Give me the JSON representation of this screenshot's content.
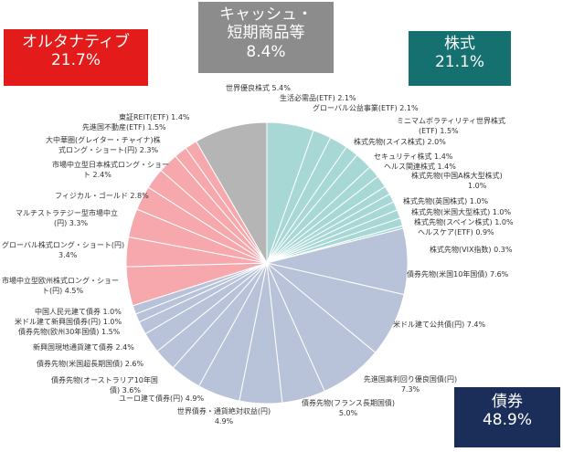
{
  "categories": {
    "alternatives": {
      "name": "オルタナティブ",
      "pct": "21.7%",
      "color": "#e41b1b"
    },
    "cash": {
      "name_line1": "キャッシュ・",
      "name_line2": "短期商品等",
      "pct": "8.4%",
      "color": "#8c8c8c"
    },
    "equity": {
      "name": "株式",
      "pct": "21.1%",
      "color": "#157070"
    },
    "bonds": {
      "name": "債券",
      "pct": "48.9%",
      "color": "#1b2e5a"
    }
  },
  "slice_colors": {
    "equity": "#a8d8d6",
    "bonds": "#b8c2d8",
    "alternatives": "#f7a8ad",
    "cash": "#b5b5b5"
  },
  "labels": {
    "eq1": "世界優良株式 5.4%",
    "eq2": "生活必需品(ETF) 2.1%",
    "eq3": "グローバル公益事業(ETF) 2.1%",
    "eq4a": "ミニマムボラティリティ世界株式",
    "eq4b": "(ETF) 1.5%",
    "eq5": "株式先物(スイス株式) 2.0%",
    "eq6": "セキュリティ株式 1.4%",
    "eq7": "ヘルス関連株式 1.4%",
    "eq8a": "株式先物(中国A株大型株式)",
    "eq8b": "1.0%",
    "eq9": "株式先物(英国株式) 1.0%",
    "eq10": "株式先物(米国大型株式) 1.0%",
    "eq11": "株式先物(スペイン株式) 1.0%",
    "eq12": "ヘルスケア(ETF) 0.9%",
    "eq13": "株式先物(VIX指数) 0.3%",
    "bd1": "債券先物(米国10年国債) 7.6%",
    "bd2": "米ドル建て公共債(円) 7.4%",
    "bd3a": "先進国高利回り優良国債(円)",
    "bd3b": "7.3%",
    "bd4a": "債券先物(フランス長期国債)",
    "bd4b": "5.0%",
    "bd5a": "世界債券・通貨絶対収益(円)",
    "bd5b": "4.9%",
    "bd6": "ユーロ建て債券(円) 4.9%",
    "bd7a": "債券先物(オーストラリア10年国",
    "bd7b": "債) 3.6%",
    "bd8": "債券先物(米国超長期国債) 2.6%",
    "bd9": "新興国現地通貨建て債券 2.4%",
    "bd10": "債券先物(欧州30年国債) 1.5%",
    "bd11": "米ドル建て新興国債券(円) 1.0%",
    "bd12": "中国人民元建て債券 1.0%",
    "al1a": "市場中立型欧州株式ロング・ショー",
    "al1b": "ト(円) 4.5%",
    "al2a": "グローバル株式ロング・ショート(円)",
    "al2b": "3.4%",
    "al3a": "マルチストラテジー型市場中立",
    "al3b": "(円) 3.3%",
    "al4": "フィジカル・ゴールド 2.8%",
    "al5a": "市場中立型日本株式ロング・ショー",
    "al5b": "ト 2.4%",
    "al6a": "大中華圏(グレイター・チャイナ)株",
    "al6b": "式ロング・ショート(円) 2.3%",
    "al7": "先進国不動産(ETF) 1.5%",
    "al8": "東証REIT(ETF) 1.4%"
  },
  "chart_data": {
    "type": "pie",
    "start": "12 o'clock, clockwise",
    "groups": [
      {
        "name": "株式",
        "total": 21.1,
        "slices": [
          {
            "label": "世界優良株式",
            "value": 5.4
          },
          {
            "label": "生活必需品(ETF)",
            "value": 2.1
          },
          {
            "label": "グローバル公益事業(ETF)",
            "value": 2.1
          },
          {
            "label": "ミニマムボラティリティ世界株式(ETF)",
            "value": 1.5
          },
          {
            "label": "株式先物(スイス株式)",
            "value": 2.0
          },
          {
            "label": "セキュリティ株式",
            "value": 1.4
          },
          {
            "label": "ヘルス関連株式",
            "value": 1.4
          },
          {
            "label": "株式先物(中国A株大型株式)",
            "value": 1.0
          },
          {
            "label": "株式先物(英国株式)",
            "value": 1.0
          },
          {
            "label": "株式先物(米国大型株式)",
            "value": 1.0
          },
          {
            "label": "株式先物(スペイン株式)",
            "value": 1.0
          },
          {
            "label": "ヘルスケア(ETF)",
            "value": 0.9
          },
          {
            "label": "株式先物(VIX指数)",
            "value": 0.3
          }
        ]
      },
      {
        "name": "債券",
        "total": 48.9,
        "slices": [
          {
            "label": "債券先物(米国10年国債)",
            "value": 7.6
          },
          {
            "label": "米ドル建て公共債(円)",
            "value": 7.4
          },
          {
            "label": "先進国高利回り優良国債(円)",
            "value": 7.3
          },
          {
            "label": "債券先物(フランス長期国債)",
            "value": 5.0
          },
          {
            "label": "世界債券・通貨絶対収益(円)",
            "value": 4.9
          },
          {
            "label": "ユーロ建て債券(円)",
            "value": 4.9
          },
          {
            "label": "債券先物(オーストラリア10年国債)",
            "value": 3.6
          },
          {
            "label": "債券先物(米国超長期国債)",
            "value": 2.6
          },
          {
            "label": "新興国現地通貨建て債券",
            "value": 2.4
          },
          {
            "label": "債券先物(欧州30年国債)",
            "value": 1.5
          },
          {
            "label": "米ドル建て新興国債券(円)",
            "value": 1.0
          },
          {
            "label": "中国人民元建て債券",
            "value": 1.0
          }
        ]
      },
      {
        "name": "オルタナティブ",
        "total": 21.7,
        "slices": [
          {
            "label": "市場中立型欧州株式ロング・ショート(円)",
            "value": 4.5
          },
          {
            "label": "グローバル株式ロング・ショート(円)",
            "value": 3.4
          },
          {
            "label": "マルチストラテジー型市場中立(円)",
            "value": 3.3
          },
          {
            "label": "フィジカル・ゴールド",
            "value": 2.8
          },
          {
            "label": "市場中立型日本株式ロング・ショート",
            "value": 2.4
          },
          {
            "label": "大中華圏(グレイター・チャイナ)株式ロング・ショート(円)",
            "value": 2.3
          },
          {
            "label": "先進国不動産(ETF)",
            "value": 1.5
          },
          {
            "label": "東証REIT(ETF)",
            "value": 1.4
          }
        ]
      },
      {
        "name": "キャッシュ・短期商品等",
        "total": 8.4,
        "slices": [
          {
            "label": "キャッシュ・短期商品等",
            "value": 8.4
          }
        ]
      }
    ]
  }
}
